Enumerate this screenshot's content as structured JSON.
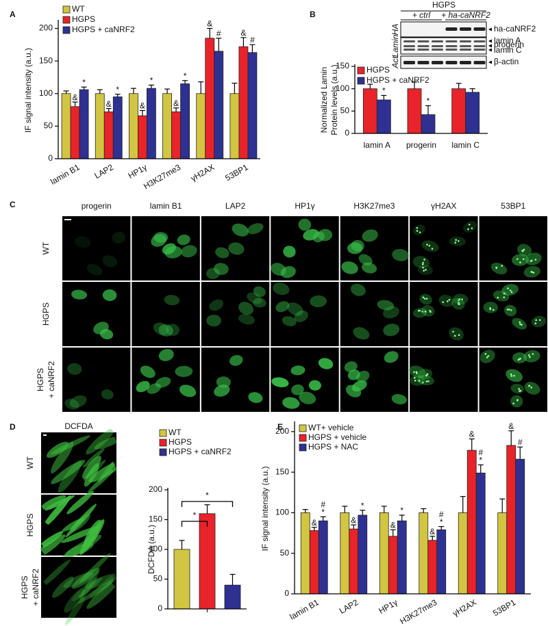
{
  "panel_labels": [
    "A",
    "B",
    "C",
    "D",
    "E"
  ],
  "chart_data": [
    {
      "type": "bar",
      "ylabel": "IF signal intensity (a.u.)",
      "categories": [
        "lamin B1",
        "LAP2",
        "HP1γ",
        "H3K27me3",
        "γH2AX",
        "53BP1"
      ],
      "ylim": [
        0,
        210
      ],
      "yticks": [
        0,
        50,
        100,
        150,
        200
      ],
      "series": [
        {
          "name": "WT",
          "color": "#d2c541",
          "values": [
            100,
            100,
            100,
            100,
            100,
            100
          ],
          "errors": [
            4,
            6,
            8,
            7,
            18,
            16
          ]
        },
        {
          "name": "HGPS",
          "color": "#e8232a",
          "values": [
            80,
            72,
            66,
            72,
            185,
            172
          ],
          "errors": [
            7,
            5,
            8,
            6,
            15,
            14
          ],
          "annotations": [
            [
              "&"
            ],
            [
              "&"
            ],
            [
              "&"
            ],
            [
              "&"
            ],
            [
              "&"
            ],
            [
              "&"
            ]
          ]
        },
        {
          "name": "HGPS + caNRF2",
          "color": "#2e3192",
          "values": [
            106,
            95,
            108,
            115,
            165,
            163
          ],
          "errors": [
            4,
            4,
            5,
            5,
            20,
            12
          ],
          "annotations": [
            [
              "*"
            ],
            [
              "*"
            ],
            [
              "*"
            ],
            [
              "*"
            ],
            [
              "#"
            ],
            [
              "#"
            ]
          ]
        }
      ]
    },
    {
      "type": "bar",
      "ylabel": [
        "Normalized Lamin",
        "Protein levels (a.u.)"
      ],
      "categories": [
        "lamin A",
        "progerin",
        "lamin C"
      ],
      "ylim": [
        0,
        150
      ],
      "yticks": [
        0,
        50,
        100,
        150
      ],
      "series": [
        {
          "name": "HGPS",
          "color": "#e8232a",
          "values": [
            100,
            100,
            100
          ],
          "errors": [
            10,
            15,
            12
          ]
        },
        {
          "name": "HGPS + caNRF2",
          "color": "#2e3192",
          "values": [
            75,
            42,
            92
          ],
          "errors": [
            10,
            20,
            8
          ],
          "annotations": [
            [
              "*"
            ],
            [
              "*"
            ],
            []
          ]
        }
      ]
    },
    {
      "type": "bar",
      "ylabel": "DCFDA (a.u.)",
      "categories": [
        null
      ],
      "ylim": [
        0,
        200
      ],
      "yticks": [
        0,
        50,
        100,
        150,
        200
      ],
      "series": [
        {
          "name": "WT",
          "color": "#d2c541",
          "values": [
            100
          ],
          "errors": [
            15
          ]
        },
        {
          "name": "HGPS",
          "color": "#e8232a",
          "values": [
            160
          ],
          "errors": [
            15
          ]
        },
        {
          "name": "HGPS + caNRF2",
          "color": "#2e3192",
          "values": [
            40
          ],
          "errors": [
            18
          ]
        }
      ],
      "brackets": [
        {
          "from": "WT",
          "to": "HGPS",
          "label": "*"
        },
        {
          "from": "WT",
          "to": "HGPS + caNRF2",
          "label": "*"
        }
      ]
    },
    {
      "type": "bar",
      "ylabel": "IF signal intensity (a.u.)",
      "categories": [
        "lamin B1",
        "LAP2",
        "HP1γ",
        "H3K27me3",
        "γH2AX",
        "53BP1"
      ],
      "ylim": [
        0,
        210
      ],
      "yticks": [
        0,
        50,
        100,
        150,
        200
      ],
      "series": [
        {
          "name": "WT+ vehicle",
          "color": "#d2c541",
          "values": [
            100,
            100,
            100,
            100,
            100,
            100
          ],
          "errors": [
            4,
            8,
            8,
            5,
            20,
            17
          ]
        },
        {
          "name": "HGPS + vehicle",
          "color": "#e8232a",
          "values": [
            78,
            80,
            71,
            66,
            177,
            183
          ],
          "errors": [
            4,
            5,
            8,
            5,
            14,
            18
          ],
          "annotations": [
            [
              "&"
            ],
            [
              "&"
            ],
            [
              "&"
            ],
            [
              "&"
            ],
            [
              "&"
            ],
            [
              "&"
            ]
          ]
        },
        {
          "name": "HGPS + NAC",
          "color": "#2e3192",
          "values": [
            90,
            97,
            90,
            79,
            149,
            166
          ],
          "errors": [
            5,
            6,
            7,
            4,
            10,
            15
          ],
          "annotations": [
            [
              "#",
              "*"
            ],
            [
              "*"
            ],
            [
              "*"
            ],
            [
              "#",
              "*"
            ],
            [
              "#",
              "*"
            ],
            [
              "#"
            ]
          ]
        }
      ]
    }
  ],
  "blot": {
    "group": "HGPS",
    "lanes": [
      "+ ctrl",
      "+ ha-caNRF2"
    ],
    "antibodies": [
      "HA",
      "Lamin",
      "Act"
    ],
    "bands": [
      "ha-caNRF2",
      "lamin A",
      "progerin",
      "lamin C",
      "β-actin"
    ]
  },
  "micrographs": {
    "columns": [
      "progerin",
      "lamin B1",
      "LAP2",
      "HP1γ",
      "H3K27me3",
      "γH2AX",
      "53BP1"
    ],
    "rows": [
      [
        "WT"
      ],
      [
        "HGPS"
      ],
      [
        "HGPS",
        "+ caNRF2"
      ]
    ]
  },
  "dcfda_images": {
    "title": "DCFDA",
    "rows": [
      [
        "WT"
      ],
      [
        "HGPS"
      ],
      [
        "HGPS",
        "+ caNRF2"
      ]
    ]
  }
}
